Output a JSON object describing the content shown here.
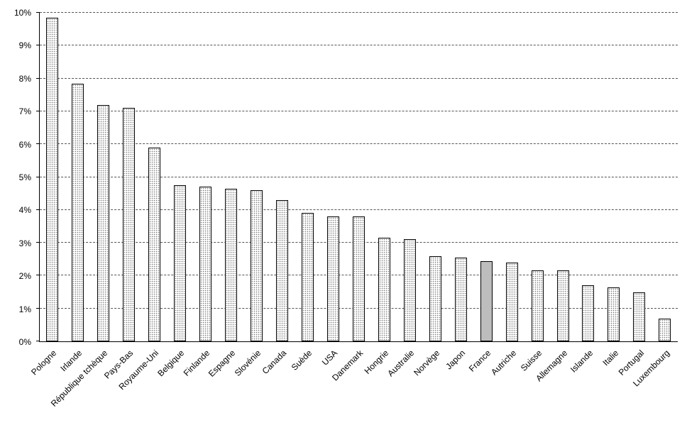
{
  "chart_data": {
    "type": "bar",
    "title": "",
    "xlabel": "",
    "ylabel": "",
    "categories": [
      "Pologne",
      "Irlande",
      "République tchèque",
      "Pays-Bas",
      "Royaume-Uni",
      "Belgique",
      "Finlande",
      "Espagne",
      "Slovénie",
      "Canada",
      "Suède",
      "USA",
      "Danemark",
      "Hongrie",
      "Australie",
      "Norvège",
      "Japon",
      "France",
      "Autriche",
      "Suisse",
      "Allemagne",
      "Islande",
      "Italie",
      "Portugal",
      "Luxembourg"
    ],
    "values": [
      9.85,
      7.85,
      7.2,
      7.1,
      5.9,
      4.75,
      4.7,
      4.65,
      4.6,
      4.3,
      3.9,
      3.8,
      3.8,
      3.15,
      3.1,
      2.6,
      2.55,
      2.45,
      2.4,
      2.15,
      2.15,
      1.7,
      1.65,
      1.5,
      0.7
    ],
    "highlighted_category": "France",
    "ylim": [
      0,
      10
    ],
    "ytick_step": 1,
    "yticks": [
      "0%",
      "1%",
      "2%",
      "3%",
      "4%",
      "5%",
      "6%",
      "7%",
      "8%",
      "9%",
      "10%"
    ],
    "grid": "dashed-horizontal",
    "legend": "none",
    "colors": {
      "bar_fill": "#ffffff",
      "bar_pattern_dot": "#7a7a7a",
      "bar_border": "#000000",
      "highlight_fill": "#bdbdbd",
      "grid_color": "#555555",
      "axis_color": "#000000",
      "background": "#ffffff"
    }
  }
}
